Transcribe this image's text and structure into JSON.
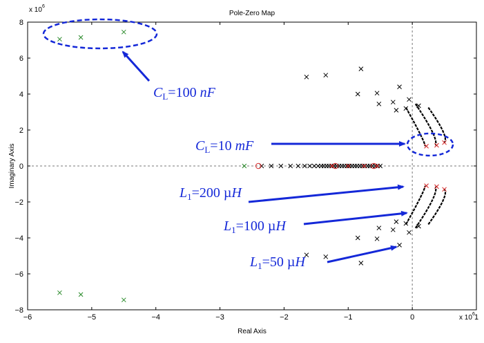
{
  "chart_data": {
    "type": "scatter",
    "title": "Pole-Zero Map",
    "xlabel": "Real Axis",
    "ylabel": "Imaginary Axis",
    "x_multiplier": "x 10",
    "x_exponent": "6",
    "y_multiplier": "x 10",
    "y_exponent": "6",
    "xlim": [
      -6,
      1
    ],
    "ylim": [
      -8,
      8
    ],
    "xticks": [
      -6,
      -5,
      -4,
      -3,
      -2,
      -1,
      0,
      1
    ],
    "yticks": [
      -8,
      -6,
      -4,
      -2,
      0,
      2,
      4,
      6,
      8
    ],
    "colors": {
      "pole_black": "#000000",
      "pole_green": "#2a8a2a",
      "pole_red": "#d42020",
      "zero_red": "#d42020",
      "annotation_blue": "#1428d8",
      "axes": "#000000",
      "reference_line": "#777777"
    },
    "series": [
      {
        "marker": "x",
        "color": "green",
        "points": [
          [
            -5.5,
            7.05
          ],
          [
            -5.17,
            7.15
          ],
          [
            -4.5,
            7.45
          ],
          [
            -5.5,
            -7.05
          ],
          [
            -5.17,
            -7.15
          ],
          [
            -4.5,
            -7.45
          ],
          [
            -2.62,
            0.0
          ]
        ]
      },
      {
        "marker": "x",
        "color": "black",
        "points": [
          [
            -1.65,
            4.95
          ],
          [
            -1.35,
            5.05
          ],
          [
            -0.8,
            5.4
          ],
          [
            -0.85,
            4.0
          ],
          [
            -0.55,
            4.05
          ],
          [
            -0.2,
            4.4
          ],
          [
            -0.52,
            3.45
          ],
          [
            -0.3,
            3.55
          ],
          [
            -0.05,
            3.7
          ],
          [
            -0.25,
            3.1
          ],
          [
            -0.1,
            3.2
          ],
          [
            0.1,
            3.35
          ],
          [
            -1.65,
            -4.95
          ],
          [
            -1.35,
            -5.05
          ],
          [
            -0.8,
            -5.4
          ],
          [
            -0.85,
            -4.0
          ],
          [
            -0.55,
            -4.05
          ],
          [
            -0.2,
            -4.4
          ],
          [
            -0.52,
            -3.45
          ],
          [
            -0.3,
            -3.55
          ],
          [
            -0.05,
            -3.7
          ],
          [
            -0.25,
            -3.1
          ],
          [
            -0.1,
            -3.2
          ],
          [
            0.1,
            -3.35
          ],
          [
            -2.35,
            0.0
          ],
          [
            -2.2,
            0.0
          ],
          [
            -2.05,
            0.0
          ],
          [
            -1.9,
            0.0
          ],
          [
            -1.78,
            0.0
          ],
          [
            -1.68,
            0.0
          ],
          [
            -1.6,
            0.0
          ],
          [
            -1.53,
            0.0
          ],
          [
            -1.47,
            0.0
          ],
          [
            -1.42,
            0.0
          ],
          [
            -1.38,
            0.0
          ],
          [
            -1.34,
            0.0
          ],
          [
            -1.3,
            0.0
          ],
          [
            -1.26,
            0.0
          ],
          [
            -1.22,
            0.0
          ],
          [
            -1.18,
            0.0
          ],
          [
            -1.14,
            0.0
          ],
          [
            -1.1,
            0.0
          ],
          [
            -1.06,
            0.0
          ],
          [
            -1.02,
            0.0
          ],
          [
            -0.98,
            0.0
          ],
          [
            -0.94,
            0.0
          ],
          [
            -0.9,
            0.0
          ],
          [
            -0.86,
            0.0
          ],
          [
            -0.82,
            0.0
          ],
          [
            -0.78,
            0.0
          ],
          [
            -0.74,
            0.0
          ],
          [
            -0.7,
            0.0
          ],
          [
            -0.66,
            0.0
          ],
          [
            -0.62,
            0.0
          ],
          [
            -0.58,
            0.0
          ],
          [
            -0.54,
            0.0
          ],
          [
            -0.5,
            0.0
          ]
        ]
      },
      {
        "marker": "x",
        "color": "red",
        "points": [
          [
            -1.25,
            0.0
          ],
          [
            -1.0,
            0.0
          ],
          [
            -0.75,
            0.0
          ],
          [
            -0.55,
            0.0
          ],
          [
            0.22,
            1.1
          ],
          [
            0.38,
            1.15
          ],
          [
            0.5,
            1.3
          ],
          [
            0.22,
            -1.1
          ],
          [
            0.38,
            -1.15
          ],
          [
            0.5,
            -1.3
          ]
        ]
      },
      {
        "marker": "o",
        "color": "red",
        "points": [
          [
            -2.4,
            0.0
          ],
          [
            -1.2,
            0.0
          ],
          [
            -0.6,
            0.0
          ]
        ]
      }
    ],
    "arcs": [
      {
        "x0": -0.1,
        "y0": 3.25,
        "xc": 0.2,
        "yc": 1.35,
        "x1": 0.2,
        "y1": 1.1
      },
      {
        "x0": 0.05,
        "y0": 3.45,
        "xc": 0.42,
        "yc": 1.5,
        "x1": 0.36,
        "y1": 1.15
      },
      {
        "x0": 0.25,
        "y0": 3.25,
        "xc": 0.58,
        "yc": 1.6,
        "x1": 0.5,
        "y1": 1.3
      }
    ],
    "annotations": [
      {
        "id": "cl100n",
        "pre": "C",
        "sub": "L",
        "post": "=100 ",
        "unit": "nF"
      },
      {
        "id": "cl10m",
        "pre": "C",
        "sub": "L",
        "post": "=10 ",
        "unit": "mF"
      },
      {
        "id": "l200",
        "pre": "L",
        "sub": "1",
        "post": "=200 µ",
        "unit": "H"
      },
      {
        "id": "l100",
        "pre": "L",
        "sub": "1",
        "post": "=100 µ",
        "unit": "H"
      },
      {
        "id": "l50",
        "pre": "L",
        "sub": "1",
        "post": "=50 µ",
        "unit": "H"
      }
    ]
  }
}
